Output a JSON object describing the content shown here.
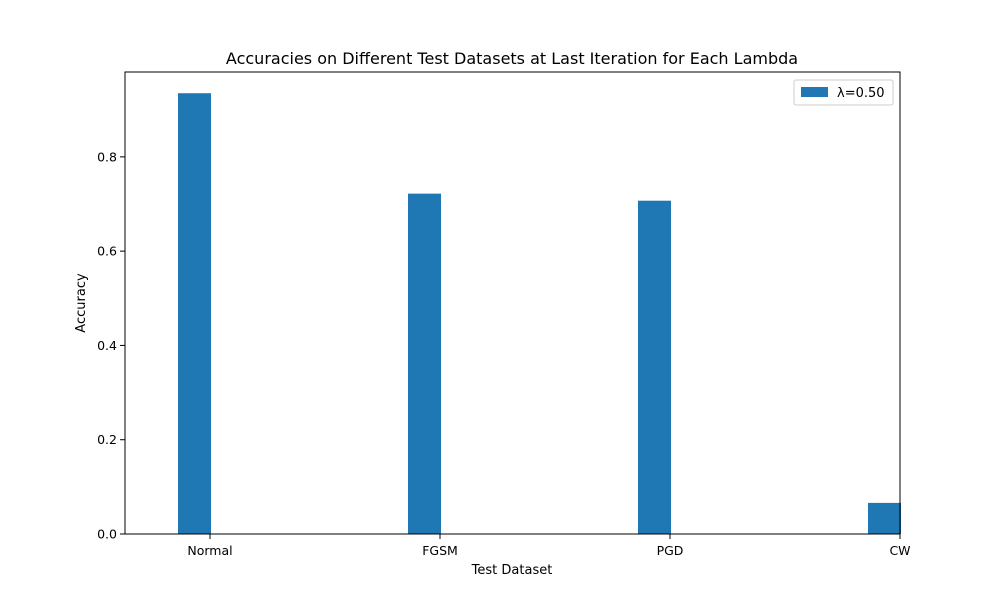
{
  "chart_data": {
    "type": "bar",
    "title": "Accuracies on Different Test Datasets at Last Iteration for Each Lambda",
    "xlabel": "Test Dataset",
    "ylabel": "Accuracy",
    "categories": [
      "Normal",
      "FGSM",
      "PGD",
      "CW"
    ],
    "series": [
      {
        "name": "λ=0.50",
        "values": [
          0.935,
          0.722,
          0.707,
          0.066
        ],
        "color": "#1f77b4"
      }
    ],
    "ylim": [
      0,
      0.98
    ],
    "yticks": [
      0.0,
      0.2,
      0.4,
      0.6,
      0.8
    ],
    "ytick_labels": [
      "0.0",
      "0.2",
      "0.4",
      "0.6",
      "0.8"
    ],
    "grid": false,
    "legend_position": "top-right"
  }
}
